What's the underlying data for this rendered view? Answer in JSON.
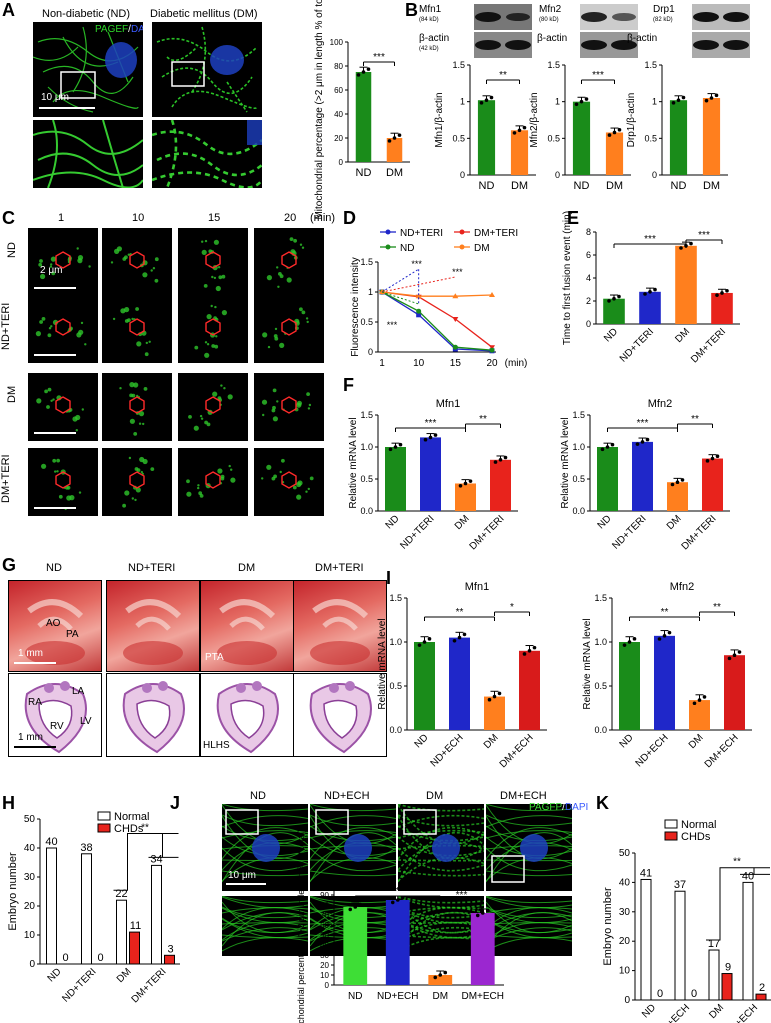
{
  "labels": {
    "A": "A",
    "B": "B",
    "C": "C",
    "D": "D",
    "E": "E",
    "F": "F",
    "G": "G",
    "H": "H",
    "I": "I",
    "J": "J",
    "K": "K"
  },
  "colors": {
    "green": "#1a8c1a",
    "blue": "#1f27c9",
    "orange": "#ff7f1e",
    "red": "#e8231c",
    "lime": "#3ede36",
    "purple": "#9b27d0",
    "dred": "#d81b1b"
  },
  "panelA": {
    "nd_title": "Non-diabetic (ND)",
    "dm_title": "Diabetic mellitus (DM)",
    "stain_a": "PAGEF",
    "stain_sep": "/",
    "stain_b": "DAPI",
    "scale": "10 μm"
  },
  "panelB": {
    "blots": [
      {
        "name": "Mfn1",
        "kd": "(84 kD)"
      },
      {
        "name": "Mfn2",
        "kd": "(80 kD)"
      },
      {
        "name": "Drp1",
        "kd": "(82 kD)"
      }
    ],
    "actin": "β-actin",
    "actin_kd": "(42 kD)"
  },
  "panelC": {
    "times": [
      "1",
      "10",
      "15",
      "20"
    ],
    "unit": "(min)",
    "rows": [
      "ND",
      "ND+TERI",
      "DM",
      "DM+TERI"
    ],
    "scale": "2 μm"
  },
  "panelG": {
    "cols": [
      "ND",
      "ND+TERI",
      "DM",
      "DM+TERI"
    ],
    "top_labels": [
      "AO",
      "PA",
      "PTA"
    ],
    "bottom_labels": [
      "RA",
      "LA",
      "RV",
      "LV",
      "HLHS"
    ],
    "scale": "1 mm"
  },
  "panelJ": {
    "cols": [
      "ND",
      "ND+ECH",
      "DM",
      "DM+ECH"
    ],
    "stain_a": "PAGFP",
    "stain_sep": "/",
    "stain_b": "DAPI",
    "scale": "10 μm"
  },
  "chart_data": [
    {
      "id": "A-bar",
      "type": "bar",
      "categories": [
        "ND",
        "DM"
      ],
      "values": [
        75,
        20
      ],
      "ylabel": "Mitochondrial percentage (>2 μm in length % of total)",
      "ylim": [
        0,
        100
      ],
      "yticks": [
        0,
        20,
        40,
        60,
        80,
        100
      ],
      "sig": [
        "***"
      ]
    },
    {
      "id": "B-mfn1",
      "type": "bar",
      "categories": [
        "ND",
        "DM"
      ],
      "values": [
        1.02,
        0.61
      ],
      "ylabel": "Mfn1/β-actin",
      "ylim": [
        0,
        1.5
      ],
      "yticks": [
        "0",
        "0.5",
        "1",
        "1.5"
      ],
      "sig": [
        "**"
      ]
    },
    {
      "id": "B-mfn2",
      "type": "bar",
      "categories": [
        "ND",
        "DM"
      ],
      "values": [
        1.0,
        0.58
      ],
      "ylabel": "Mfn2/β-actin",
      "ylim": [
        0,
        1.5
      ],
      "yticks": [
        "0",
        "0.5",
        "1",
        "1.5"
      ],
      "sig": [
        "***"
      ]
    },
    {
      "id": "B-drp1",
      "type": "bar",
      "categories": [
        "ND",
        "DM"
      ],
      "values": [
        1.02,
        1.05
      ],
      "ylabel": "Drp1/β-actin",
      "ylim": [
        0,
        1.5
      ],
      "yticks": [
        "0",
        "0.5",
        "1",
        "1.5"
      ],
      "sig": []
    },
    {
      "id": "D-line",
      "type": "line",
      "x": [
        "1",
        "10",
        "15",
        "20"
      ],
      "xunit": "(min)",
      "ylabel": "Fluorescence intensity",
      "ylim": [
        0,
        1.5
      ],
      "yticks": [
        "0",
        "0.5",
        "1",
        "1.5"
      ],
      "series": [
        {
          "name": "ND+TERI",
          "values": [
            1.0,
            0.62,
            0.05,
            0.02
          ]
        },
        {
          "name": "DM+TERI",
          "values": [
            1.0,
            0.92,
            0.55,
            0.08
          ]
        },
        {
          "name": "ND",
          "values": [
            1.0,
            0.68,
            0.08,
            0.03
          ]
        },
        {
          "name": "DM",
          "values": [
            1.0,
            0.93,
            0.93,
            0.95
          ]
        }
      ],
      "sig": [
        "***",
        "***",
        "***"
      ]
    },
    {
      "id": "E-bar",
      "type": "bar",
      "categories": [
        "ND",
        "ND+TERI",
        "DM",
        "DM+TERI"
      ],
      "values": [
        2.2,
        2.8,
        6.8,
        2.7
      ],
      "ylabel": "Time to first fusion event (min)",
      "ylim": [
        0,
        8
      ],
      "yticks": [
        0,
        2,
        4,
        6,
        8
      ],
      "sig": [
        "***",
        "***"
      ]
    },
    {
      "id": "F-mfn1",
      "type": "bar",
      "title": "Mfn1",
      "categories": [
        "ND",
        "ND+TERI",
        "DM",
        "DM+TERI"
      ],
      "values": [
        1.0,
        1.15,
        0.43,
        0.8
      ],
      "ylabel": "Relative mRNA level",
      "ylim": [
        0,
        1.5
      ],
      "yticks": [
        "0.0",
        "0.5",
        "1.0",
        "1.5"
      ],
      "sig": [
        "***",
        "**"
      ]
    },
    {
      "id": "F-mfn2",
      "type": "bar",
      "title": "Mfn2",
      "categories": [
        "ND",
        "ND+TERI",
        "DM",
        "DM+TERI"
      ],
      "values": [
        1.0,
        1.08,
        0.45,
        0.82
      ],
      "ylabel": "Relative mRNA level",
      "ylim": [
        0,
        1.5
      ],
      "yticks": [
        "0.0",
        "0.5",
        "1.0",
        "1.5"
      ],
      "sig": [
        "***",
        "**"
      ]
    },
    {
      "id": "H-bar",
      "type": "bar",
      "categories": [
        "ND",
        "ND+TERI",
        "DM",
        "DM+TERI"
      ],
      "series": [
        {
          "name": "Normal",
          "values": [
            40,
            38,
            22,
            34
          ]
        },
        {
          "name": "CHDs",
          "values": [
            0,
            0,
            11,
            3
          ]
        }
      ],
      "ylabel": "Embryo number",
      "ylim": [
        0,
        50
      ],
      "yticks": [
        0,
        10,
        20,
        30,
        40,
        50
      ],
      "sig": [
        "**"
      ]
    },
    {
      "id": "I-mfn1",
      "type": "bar",
      "title": "Mfn1",
      "categories": [
        "ND",
        "ND+ECH",
        "DM",
        "DM+ECH"
      ],
      "values": [
        1.0,
        1.05,
        0.38,
        0.9
      ],
      "ylabel": "Relative mRNA level",
      "ylim": [
        0,
        1.5
      ],
      "yticks": [
        "0.0",
        "0.5",
        "1.0",
        "1.5"
      ],
      "sig": [
        "**",
        "*"
      ]
    },
    {
      "id": "I-mfn2",
      "type": "bar",
      "title": "Mfn2",
      "categories": [
        "ND",
        "ND+ECH",
        "DM",
        "DM+ECH"
      ],
      "values": [
        1.0,
        1.07,
        0.34,
        0.85
      ],
      "ylabel": "Relative mRNA level",
      "ylim": [
        0,
        1.5
      ],
      "yticks": [
        "0.0",
        "0.5",
        "1.0",
        "1.5"
      ],
      "sig": [
        "**",
        "**"
      ]
    },
    {
      "id": "J-bar",
      "type": "bar",
      "categories": [
        "ND",
        "ND+ECH",
        "DM",
        "DM+ECH"
      ],
      "values": [
        78,
        85,
        10,
        72
      ],
      "ylabel": "Mitochondrial percentage (>2 μm in length % of total)",
      "ylim": [
        0,
        100
      ],
      "yticks": [
        0,
        10,
        20,
        30,
        40,
        50,
        60,
        70,
        80,
        90,
        100
      ],
      "sig": [
        "***",
        "***"
      ]
    },
    {
      "id": "K-bar",
      "type": "bar",
      "categories": [
        "ND",
        "ND+ECH",
        "DM",
        "DM+ECH"
      ],
      "series": [
        {
          "name": "Normal",
          "values": [
            41,
            37,
            17,
            40
          ]
        },
        {
          "name": "CHDs",
          "values": [
            0,
            0,
            9,
            2
          ]
        }
      ],
      "ylabel": "Embryo number",
      "ylim": [
        0,
        50
      ],
      "yticks": [
        0,
        10,
        20,
        30,
        40,
        50
      ],
      "sig": [
        "**"
      ]
    }
  ]
}
